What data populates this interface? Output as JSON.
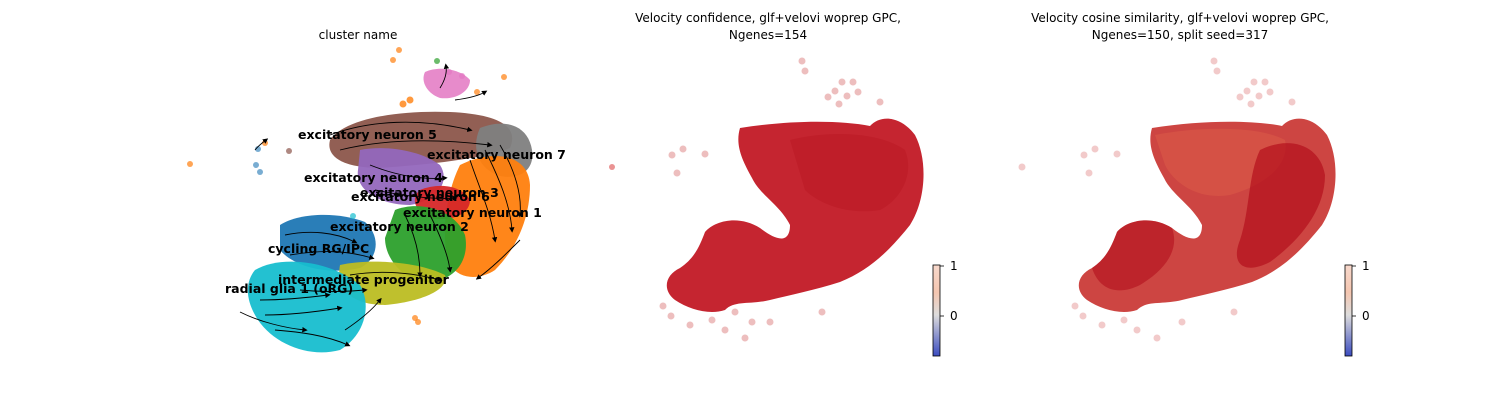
{
  "chart_data": [
    {
      "type": "scatter",
      "title": "cluster name",
      "legend": "on data",
      "streamlines": true,
      "series": [
        {
          "name": "excitatory neuron 5",
          "color": "#8c564b"
        },
        {
          "name": "excitatory neuron 7",
          "color": "#7f7f7f"
        },
        {
          "name": "excitatory neuron 4",
          "color": "#9467bd"
        },
        {
          "name": "excitatory neuron 3",
          "color": "#ff7f0e"
        },
        {
          "name": "excitatory neuron 6",
          "color": "#d62728"
        },
        {
          "name": "excitatory neuron 1",
          "color": "#ff7f0e"
        },
        {
          "name": "excitatory neuron 2",
          "color": "#2ca02c"
        },
        {
          "name": "cycling RG/IPC",
          "color": "#1f77b4"
        },
        {
          "name": "intermediate progenitor",
          "color": "#bcbd22"
        },
        {
          "name": "radial glia 1 (oRG)",
          "color": "#17becf"
        }
      ]
    },
    {
      "type": "scatter",
      "title": "Velocity confidence, glf+velovi woprep GPC,",
      "subtitle": "Ngenes=154",
      "colorbar": {
        "ticks": [
          "1",
          "0"
        ],
        "low_color": "#3b4cc0",
        "high_color": "#b40426"
      }
    },
    {
      "type": "scatter",
      "title": "Velocity cosine similarity, glf+velovi woprep GPC,",
      "subtitle": "Ngenes=150, split seed=317",
      "colorbar": {
        "ticks": [
          "1",
          "0"
        ],
        "low_color": "#3b4cc0",
        "high_color": "#b40426"
      }
    }
  ],
  "colors": {
    "point_red": "#c0121e",
    "outlier_pink": "#e8a0a0"
  }
}
